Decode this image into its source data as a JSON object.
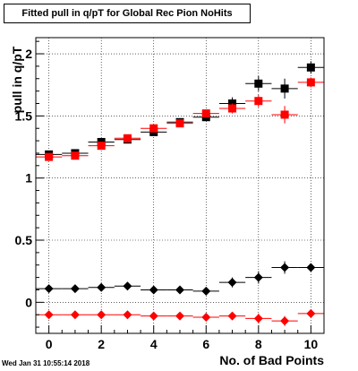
{
  "header": {
    "title": "Fitted pull in q/pT  for Global Rec Pion NoHits",
    "timestamp": "Wed Jan 31 10:55:14 2018"
  },
  "chart_data": {
    "type": "scatter",
    "title": "Fitted pull in q/pT  for Global Rec Pion NoHits",
    "xlabel": "No. of Bad Points",
    "ylabel": "pull in q/pT",
    "xlim": [
      -0.5,
      10.5
    ],
    "ylim": [
      -0.25,
      2.13
    ],
    "x_ticks": [
      0,
      2,
      4,
      6,
      8,
      10
    ],
    "y_ticks": [
      0,
      0.5,
      1,
      1.5,
      2
    ],
    "y_tick_labels": [
      "0",
      "0.5",
      "1",
      "1.5",
      "2"
    ],
    "grid": true,
    "x": [
      0,
      1,
      2,
      3,
      4,
      5,
      6,
      7,
      8,
      9,
      10
    ],
    "series": [
      {
        "color": "#000000",
        "marker": "square",
        "values": [
          1.19,
          1.2,
          1.29,
          1.31,
          1.37,
          1.45,
          1.49,
          1.6,
          1.76,
          1.72,
          1.89
        ],
        "y_err": [
          0.02,
          0.02,
          0.03,
          0.02,
          0.02,
          0.02,
          0.03,
          0.05,
          0.06,
          0.08,
          0.05
        ]
      },
      {
        "color": "#ff0000",
        "marker": "square",
        "values": [
          1.17,
          1.18,
          1.26,
          1.32,
          1.4,
          1.44,
          1.52,
          1.56,
          1.62,
          1.51,
          1.77
        ],
        "y_err": [
          0.02,
          0.02,
          0.03,
          0.02,
          0.02,
          0.02,
          0.03,
          0.04,
          0.05,
          0.07,
          0.04
        ]
      },
      {
        "color": "#000000",
        "marker": "diamond",
        "values": [
          0.11,
          0.11,
          0.12,
          0.13,
          0.1,
          0.1,
          0.09,
          0.16,
          0.2,
          0.28,
          0.28
        ],
        "y_err": [
          0.01,
          0.01,
          0.01,
          0.01,
          0.01,
          0.01,
          0.01,
          0.04,
          0.05,
          0.05,
          0.03
        ]
      },
      {
        "color": "#ff0000",
        "marker": "diamond",
        "values": [
          -0.1,
          -0.1,
          -0.1,
          -0.1,
          -0.11,
          -0.11,
          -0.12,
          -0.11,
          -0.13,
          -0.15,
          -0.09
        ],
        "y_err": [
          0.01,
          0.01,
          0.01,
          0.01,
          0.01,
          0.01,
          0.02,
          0.03,
          0.04,
          0.04,
          0.02
        ]
      }
    ]
  }
}
